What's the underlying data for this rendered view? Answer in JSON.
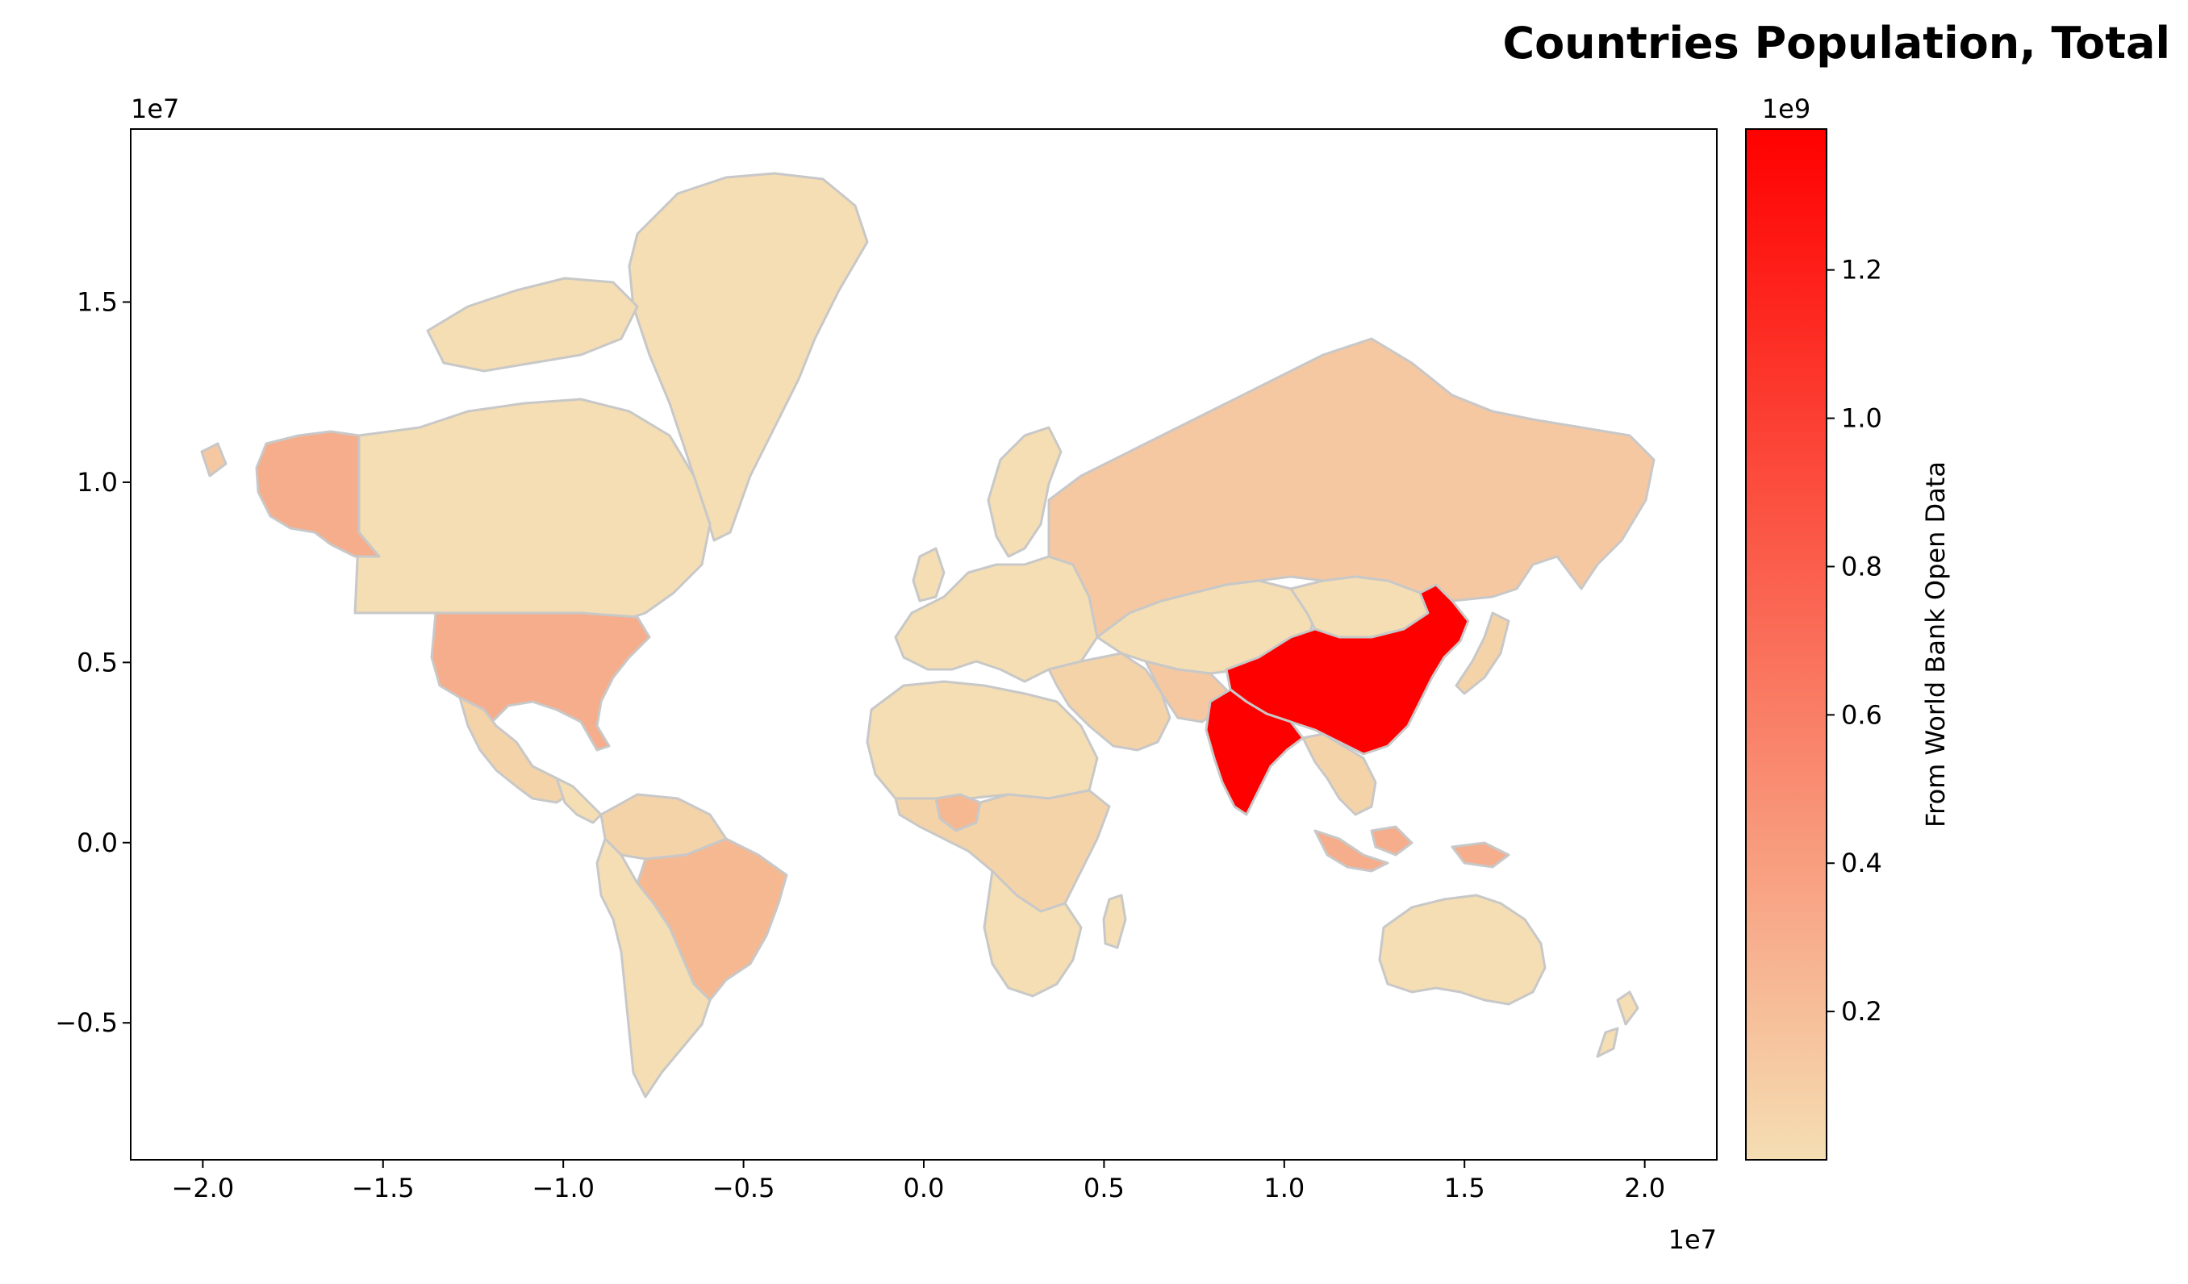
{
  "title": "Countries Population, Total",
  "map": {
    "x_offset_label": "1e7",
    "y_offset_label": "1e7",
    "x_ticks": [
      -2.0,
      -1.5,
      -1.0,
      -0.5,
      0.0,
      0.5,
      1.0,
      1.5,
      2.0
    ],
    "x_tick_labels": [
      "−2.0",
      "−1.5",
      "−1.0",
      "−0.5",
      "0.0",
      "0.5",
      "1.0",
      "1.5",
      "2.0"
    ],
    "y_ticks": [
      -0.5,
      0.0,
      0.5,
      1.0,
      1.5
    ],
    "y_tick_labels": [
      "−0.5",
      "0.0",
      "0.5",
      "1.0",
      "1.5"
    ],
    "xlim": [
      -2.2,
      2.2
    ],
    "ylim": [
      -0.88,
      1.98
    ],
    "border_color": "#c8c8c8",
    "base_color": "#f5deb3"
  },
  "colorbar": {
    "label": "From World Bank Open Data",
    "offset_label": "1e9",
    "ticks": [
      0.2,
      0.4,
      0.6,
      0.8,
      1.0,
      1.2
    ],
    "tick_labels": [
      "0.2",
      "0.4",
      "0.6",
      "0.8",
      "1.0",
      "1.2"
    ],
    "range": [
      0.0,
      1.39
    ],
    "color_low": "#f5deb3",
    "color_high": "#ff0000"
  },
  "regions": [
    {
      "name": "China",
      "value": 1.39
    },
    {
      "name": "India",
      "value": 1.35
    },
    {
      "name": "United States",
      "value": 0.33
    },
    {
      "name": "Indonesia",
      "value": 0.27
    },
    {
      "name": "Brazil",
      "value": 0.21
    },
    {
      "name": "Nigeria",
      "value": 0.2
    },
    {
      "name": "Russia",
      "value": 0.145
    },
    {
      "name": "Mexico",
      "value": 0.126
    },
    {
      "name": "Canada",
      "value": 0.038
    },
    {
      "name": "Australia",
      "value": 0.025
    },
    {
      "name": "Greenland",
      "value": 0.0001
    }
  ]
}
